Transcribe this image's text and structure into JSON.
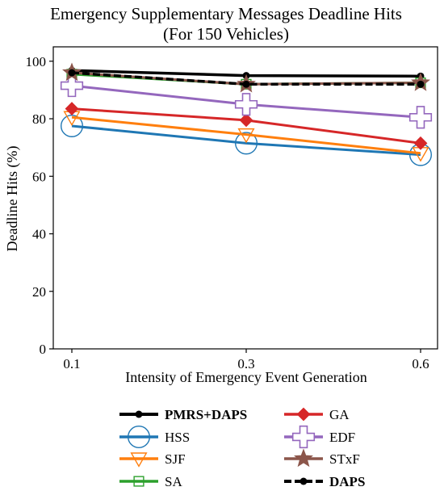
{
  "chart_data": {
    "type": "line",
    "title": "Emergency Supplementary Messages Deadline Hits",
    "subtitle": "(For 150 Vehicles)",
    "xlabel": "Intensity of Emergency Event Generation",
    "ylabel": "Deadline Hits (%)",
    "x": [
      "0.1",
      "0.3",
      "0.6"
    ],
    "ylim": [
      0,
      105
    ],
    "yticks": [
      0,
      20,
      40,
      60,
      80,
      100
    ],
    "ytick_labels": [
      "0",
      "20",
      "40",
      "60",
      "80",
      "100"
    ],
    "grid": false,
    "legend_position": "bottom",
    "series": [
      {
        "name": "PMRS+DAPS",
        "color": "#000000",
        "marker": "dot",
        "dash": "solid",
        "bold": true,
        "values": [
          96.8,
          95.0,
          94.8
        ]
      },
      {
        "name": "HSS",
        "color": "#1f77b4",
        "marker": "circle",
        "dash": "solid",
        "bold": false,
        "values": [
          77.5,
          71.5,
          67.5
        ]
      },
      {
        "name": "SJF",
        "color": "#ff7f0e",
        "marker": "triangle-down",
        "dash": "solid",
        "bold": false,
        "values": [
          80.5,
          74.5,
          68.0
        ]
      },
      {
        "name": "SA",
        "color": "#2ca02c",
        "marker": "square",
        "dash": "solid",
        "bold": false,
        "values": [
          95.5,
          92.0,
          92.5
        ]
      },
      {
        "name": "GA",
        "color": "#d62728",
        "marker": "diamond",
        "dash": "solid",
        "bold": false,
        "values": [
          83.5,
          79.5,
          71.5
        ]
      },
      {
        "name": "EDF",
        "color": "#9467bd",
        "marker": "plus",
        "dash": "solid",
        "bold": false,
        "values": [
          91.5,
          85.0,
          80.5
        ]
      },
      {
        "name": "STxF",
        "color": "#8c564b",
        "marker": "star",
        "dash": "solid",
        "bold": false,
        "values": [
          96.0,
          92.0,
          92.5
        ]
      },
      {
        "name": "DAPS",
        "color": "#000000",
        "marker": "dot",
        "dash": "dashed",
        "bold": true,
        "values": [
          96.0,
          92.0,
          92.0
        ]
      }
    ]
  }
}
